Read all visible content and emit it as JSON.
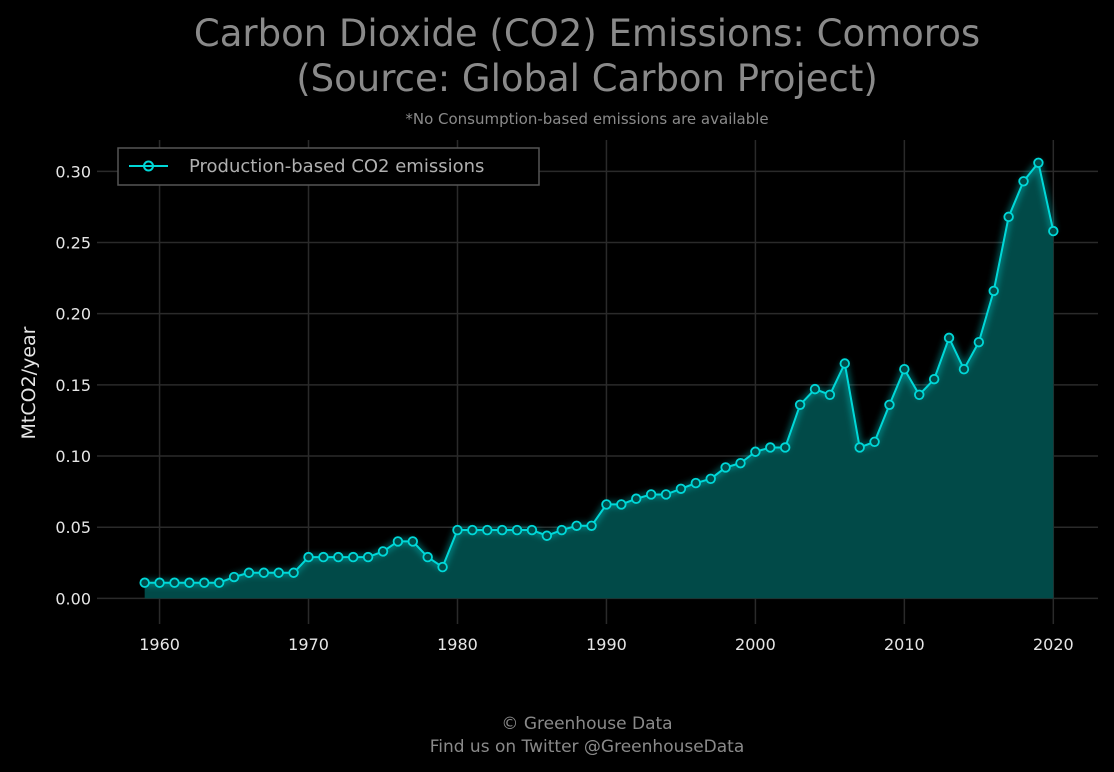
{
  "chart_data": {
    "type": "area",
    "title_line1": "Carbon Dioxide (CO2) Emissions: Comoros",
    "title_line2": "(Source: Global Carbon Project)",
    "subtitle": "*No Consumption-based emissions are available",
    "xlabel": "",
    "ylabel": "MtCO2/year",
    "xlim": [
      1955.8,
      2023
    ],
    "ylim": [
      -0.018,
      0.322
    ],
    "grid": true,
    "legend_position": "top-left",
    "x_ticks": [
      1960,
      1970,
      1980,
      1990,
      2000,
      2010,
      2020
    ],
    "x_tick_labels": [
      "1960",
      "1970",
      "1980",
      "1990",
      "2000",
      "2010",
      "2020"
    ],
    "y_ticks": [
      0.0,
      0.05,
      0.1,
      0.15,
      0.2,
      0.25,
      0.3
    ],
    "y_tick_labels": [
      "0.00",
      "0.05",
      "0.10",
      "0.15",
      "0.20",
      "0.25",
      "0.30"
    ],
    "series": [
      {
        "name": "Production-based CO2 emissions",
        "color": "#00d8d8",
        "fill_color": "#014a48",
        "x": [
          1959,
          1960,
          1961,
          1962,
          1963,
          1964,
          1965,
          1966,
          1967,
          1968,
          1969,
          1970,
          1971,
          1972,
          1973,
          1974,
          1975,
          1976,
          1977,
          1978,
          1979,
          1980,
          1981,
          1982,
          1983,
          1984,
          1985,
          1986,
          1987,
          1988,
          1989,
          1990,
          1991,
          1992,
          1993,
          1994,
          1995,
          1996,
          1997,
          1998,
          1999,
          2000,
          2001,
          2002,
          2003,
          2004,
          2005,
          2006,
          2007,
          2008,
          2009,
          2010,
          2011,
          2012,
          2013,
          2014,
          2015,
          2016,
          2017,
          2018,
          2019,
          2020
        ],
        "values": [
          0.011,
          0.011,
          0.011,
          0.011,
          0.011,
          0.011,
          0.015,
          0.018,
          0.018,
          0.018,
          0.018,
          0.029,
          0.029,
          0.029,
          0.029,
          0.029,
          0.033,
          0.04,
          0.04,
          0.029,
          0.022,
          0.048,
          0.048,
          0.048,
          0.048,
          0.048,
          0.048,
          0.044,
          0.048,
          0.051,
          0.051,
          0.066,
          0.066,
          0.07,
          0.073,
          0.073,
          0.077,
          0.081,
          0.084,
          0.092,
          0.095,
          0.103,
          0.106,
          0.106,
          0.136,
          0.147,
          0.143,
          0.165,
          0.106,
          0.11,
          0.136,
          0.161,
          0.143,
          0.154,
          0.183,
          0.161,
          0.18,
          0.216,
          0.268,
          0.293,
          0.306,
          0.258
        ]
      }
    ]
  },
  "footer": {
    "line1": "© Greenhouse Data",
    "line2": "Find us on Twitter @GreenhouseData"
  }
}
